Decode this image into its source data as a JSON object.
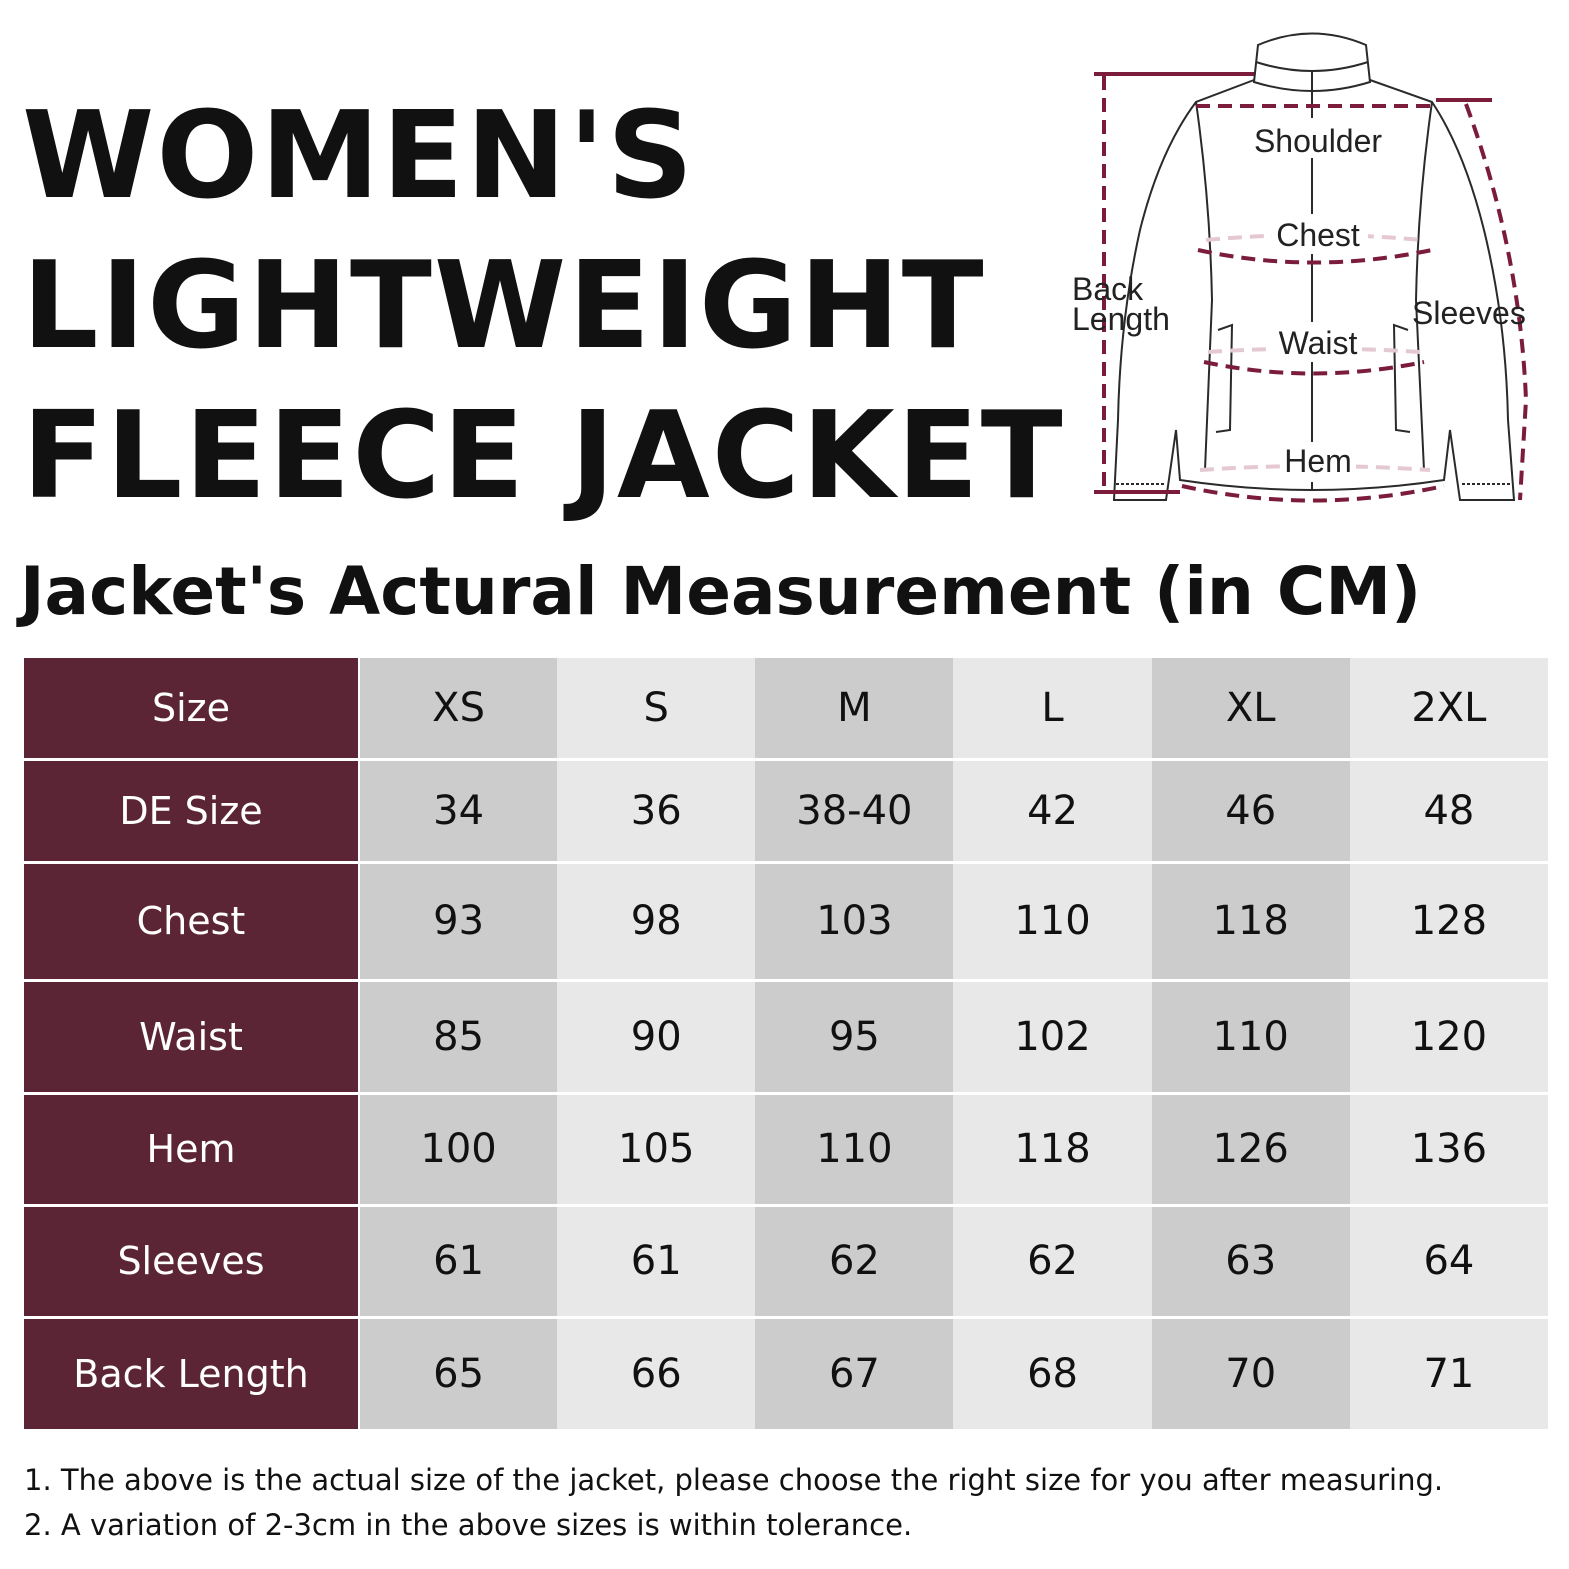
{
  "title": {
    "lines": [
      "WOMEN'S",
      "LIGHTWEIGHT",
      "FLEECE JACKET"
    ]
  },
  "subtitle": "Jacket's Actural Measurement (in CM)",
  "diagram": {
    "labels": {
      "shoulder": "Shoulder",
      "chest": "Chest",
      "waist": "Waist",
      "hem": "Hem",
      "back_length_1": "Back",
      "back_length_2": "Length",
      "sleeves": "Sleeves"
    },
    "colors": {
      "outline": "#2a2a2a",
      "measure": "#7a1c3a",
      "measure_light": "#e4c9d1"
    }
  },
  "table": {
    "header_label": "Size",
    "columns": [
      "XS",
      "S",
      "M",
      "L",
      "XL",
      "2XL"
    ],
    "rows": [
      {
        "label": "DE Size",
        "values": [
          "34",
          "36",
          "38-40",
          "42",
          "46",
          "48"
        ]
      },
      {
        "label": "Chest",
        "values": [
          "93",
          "98",
          "103",
          "110",
          "118",
          "128"
        ]
      },
      {
        "label": "Waist",
        "values": [
          "85",
          "90",
          "95",
          "102",
          "110",
          "120"
        ]
      },
      {
        "label": "Hem",
        "values": [
          "100",
          "105",
          "110",
          "118",
          "126",
          "136"
        ]
      },
      {
        "label": "Sleeves",
        "values": [
          "61",
          "61",
          "62",
          "62",
          "63",
          "64"
        ]
      },
      {
        "label": "Back Length",
        "values": [
          "65",
          "66",
          "67",
          "68",
          "70",
          "71"
        ]
      }
    ],
    "colors": {
      "header_bg": "#5b2535",
      "cell_dark": "#cccccc",
      "cell_light": "#e8e8e8"
    }
  },
  "notes": [
    "1. The above is the actual size of the jacket, please choose the right size for you after measuring.",
    "2. A variation of 2-3cm in the above sizes is within tolerance."
  ]
}
